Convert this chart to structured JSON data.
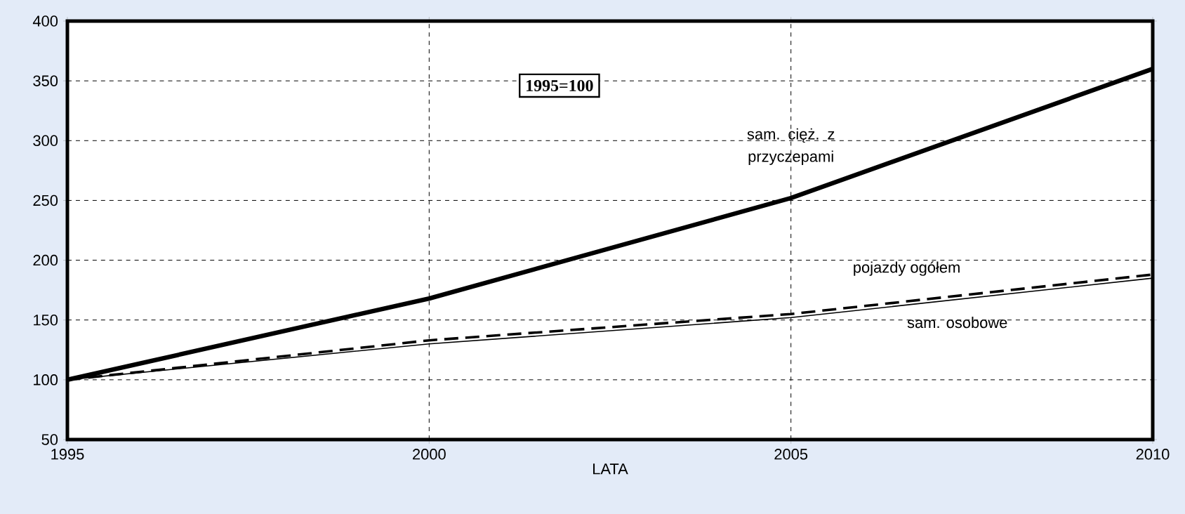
{
  "chart_data": {
    "type": "line",
    "xlabel": "LATA",
    "x": [
      1995,
      2000,
      2005,
      2010
    ],
    "series": [
      {
        "name": "sam. cięż. z przyczepami",
        "color": "#000000",
        "line_style": "solid",
        "values": [
          100,
          168,
          252,
          360
        ]
      },
      {
        "name": "pojazdy ogółem",
        "color": "#000000",
        "line_style": "dashed",
        "values": [
          100,
          133,
          155,
          188
        ]
      },
      {
        "name": "sam. osobowe",
        "color": "#000000",
        "line_style": "solid",
        "values": [
          100,
          130,
          152,
          185
        ]
      }
    ],
    "annotations": [
      "1995=100"
    ],
    "xlim": [
      1995,
      2010
    ],
    "ylim": [
      50,
      400
    ],
    "xticks": [
      1995,
      2000,
      2005,
      2010
    ],
    "yticks": [
      50,
      100,
      150,
      200,
      250,
      300,
      350,
      400
    ],
    "grid": true,
    "legend": false,
    "marker": "none"
  }
}
